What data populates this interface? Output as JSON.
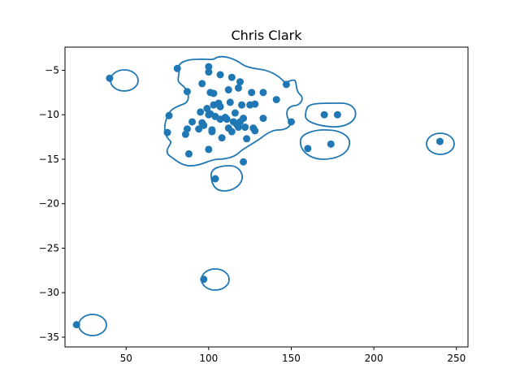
{
  "chart_data": {
    "type": "scatter",
    "title": "Chris Clark",
    "xlabel": "",
    "ylabel": "",
    "xlim": [
      13,
      257
    ],
    "ylim": [
      -36.1,
      -2.4
    ],
    "xticks": [
      50,
      100,
      150,
      200,
      250
    ],
    "yticks": [
      -5,
      -10,
      -15,
      -20,
      -25,
      -30,
      -35
    ],
    "grid": false,
    "color": "#1f77b4",
    "points": [
      {
        "x": 20,
        "y": -33.6
      },
      {
        "x": 40,
        "y": -5.9
      },
      {
        "x": 97,
        "y": -28.5
      },
      {
        "x": 104,
        "y": -17.2
      },
      {
        "x": 121,
        "y": -15.3
      },
      {
        "x": 160,
        "y": -13.8
      },
      {
        "x": 174,
        "y": -13.3
      },
      {
        "x": 240,
        "y": -13.0
      },
      {
        "x": 170,
        "y": -10.0
      },
      {
        "x": 178,
        "y": -10.0
      },
      {
        "x": 150,
        "y": -10.8
      },
      {
        "x": 147,
        "y": -6.6
      },
      {
        "x": 141,
        "y": -8.3
      },
      {
        "x": 133,
        "y": -7.5
      },
      {
        "x": 133,
        "y": -10.4
      },
      {
        "x": 127,
        "y": -11.5
      },
      {
        "x": 81,
        "y": -4.8
      },
      {
        "x": 100,
        "y": -4.6
      },
      {
        "x": 100,
        "y": -5.2
      },
      {
        "x": 107,
        "y": -5.5
      },
      {
        "x": 114,
        "y": -5.8
      },
      {
        "x": 119,
        "y": -6.3
      },
      {
        "x": 96,
        "y": -6.5
      },
      {
        "x": 87,
        "y": -7.4
      },
      {
        "x": 101,
        "y": -7.5
      },
      {
        "x": 103,
        "y": -7.6
      },
      {
        "x": 118,
        "y": -7.0
      },
      {
        "x": 112,
        "y": -7.2
      },
      {
        "x": 126,
        "y": -7.5
      },
      {
        "x": 76,
        "y": -10.1
      },
      {
        "x": 75,
        "y": -12.0
      },
      {
        "x": 86,
        "y": -12.2
      },
      {
        "x": 87,
        "y": -11.6
      },
      {
        "x": 90,
        "y": -10.8
      },
      {
        "x": 94,
        "y": -11.6
      },
      {
        "x": 95,
        "y": -9.7
      },
      {
        "x": 96,
        "y": -10.9
      },
      {
        "x": 97,
        "y": -11.2
      },
      {
        "x": 99,
        "y": -9.3
      },
      {
        "x": 100,
        "y": -10.0
      },
      {
        "x": 101,
        "y": -9.9
      },
      {
        "x": 102,
        "y": -11.7
      },
      {
        "x": 102,
        "y": -11.9
      },
      {
        "x": 103,
        "y": -8.9
      },
      {
        "x": 104,
        "y": -10.2
      },
      {
        "x": 106,
        "y": -8.7
      },
      {
        "x": 107,
        "y": -9.1
      },
      {
        "x": 107,
        "y": -10.5
      },
      {
        "x": 108,
        "y": -12.6
      },
      {
        "x": 110,
        "y": -10.3
      },
      {
        "x": 111,
        "y": -10.5
      },
      {
        "x": 112,
        "y": -11.5
      },
      {
        "x": 113,
        "y": -8.6
      },
      {
        "x": 114,
        "y": -11.9
      },
      {
        "x": 115,
        "y": -10.8
      },
      {
        "x": 116,
        "y": -9.8
      },
      {
        "x": 117,
        "y": -11.1
      },
      {
        "x": 118,
        "y": -11.4
      },
      {
        "x": 119,
        "y": -10.8
      },
      {
        "x": 120,
        "y": -8.9
      },
      {
        "x": 121,
        "y": -10.4
      },
      {
        "x": 122,
        "y": -11.4
      },
      {
        "x": 123,
        "y": -12.7
      },
      {
        "x": 125,
        "y": -8.9
      },
      {
        "x": 128,
        "y": -8.8
      },
      {
        "x": 128,
        "y": -11.8
      },
      {
        "x": 88,
        "y": -14.4
      },
      {
        "x": 100,
        "y": -13.9
      }
    ]
  }
}
